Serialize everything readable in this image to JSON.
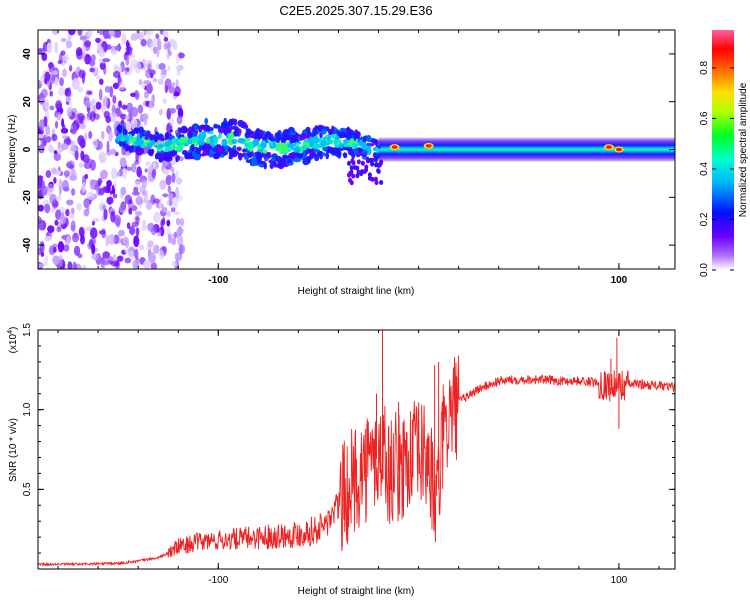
{
  "title": "C2E5.2025.307.15.29.E36",
  "chart_data": [
    {
      "type": "heatmap",
      "title": "C2E5.2025.307.15.29.E36",
      "xlabel": "Height of straight line (km)",
      "ylabel": "Frequency (Hz)",
      "xlim": [
        -190,
        128
      ],
      "ylim": [
        -50,
        50
      ],
      "x_ticks": [
        -100,
        100
      ],
      "y_ticks": [
        -40,
        -20,
        0,
        20,
        40
      ],
      "colorbar": {
        "label": "Normalized spectral amplitude",
        "range": [
          0,
          0.95
        ],
        "ticks": [
          "0.0",
          "0.2",
          "0.4",
          "0.6",
          "0.8"
        ]
      },
      "features": [
        {
          "name": "scatter-noise",
          "x_range": [
            -190,
            -128
          ],
          "freq_range": [
            -50,
            50
          ]
        },
        {
          "name": "wobbly-band",
          "x_range": [
            -150,
            -20
          ],
          "freq_center": 4,
          "freq_width": 8
        },
        {
          "name": "flat-band",
          "x_range": [
            -20,
            128
          ],
          "freq_center": 0,
          "freq_width": 5
        },
        {
          "name": "peak-1",
          "x": -12,
          "freq": 1,
          "amplitude": 0.9
        },
        {
          "name": "peak-2",
          "x": 5,
          "freq": 1.5,
          "amplitude": 0.95
        },
        {
          "name": "peak-3",
          "x": 95,
          "freq": 1,
          "amplitude": 0.85
        },
        {
          "name": "peak-4",
          "x": 100,
          "freq": 0,
          "amplitude": 0.95
        }
      ]
    },
    {
      "type": "line",
      "xlabel": "Height of straight line (km)",
      "ylabel": "SNR (10 * v/v)",
      "multiplier": "(x10",
      "multiplier_exp": "4",
      "multiplier_close": ")",
      "xlim": [
        -190,
        128
      ],
      "ylim": [
        0,
        1.5
      ],
      "x_ticks": [
        -100,
        100
      ],
      "y_ticks": [
        "0.5",
        "1.0",
        "1.5"
      ],
      "series": [
        {
          "name": "SNR",
          "color": "#ee2222",
          "x": [
            -190,
            -170,
            -150,
            -140,
            -130,
            -125,
            -120,
            -110,
            -100,
            -90,
            -80,
            -70,
            -60,
            -50,
            -45,
            -40,
            -35,
            -30,
            -25,
            -20,
            -17,
            -15,
            -12,
            -10,
            -5,
            0,
            5,
            8,
            10,
            12,
            15,
            20,
            30,
            40,
            50,
            60,
            70,
            80,
            90,
            95,
            100,
            105,
            110,
            120,
            128
          ],
          "y": [
            0.03,
            0.03,
            0.035,
            0.05,
            0.07,
            0.1,
            0.14,
            0.17,
            0.18,
            0.19,
            0.2,
            0.21,
            0.22,
            0.25,
            0.3,
            0.4,
            0.5,
            0.6,
            0.65,
            0.7,
            0.75,
            0.6,
            0.65,
            0.62,
            0.7,
            0.72,
            0.7,
            0.4,
            0.5,
            0.8,
            0.95,
            1.05,
            1.13,
            1.18,
            1.19,
            1.19,
            1.18,
            1.18,
            1.17,
            1.15,
            1.15,
            1.16,
            1.16,
            1.15,
            1.14
          ]
        }
      ],
      "spikes": [
        {
          "x": -18,
          "y": 1.5
        },
        {
          "x": -21,
          "y": 1.1
        },
        {
          "x": -10,
          "y": 1.05
        },
        {
          "x": 8,
          "y": 1.28
        },
        {
          "x": 10,
          "y": 1.3
        },
        {
          "x": 96,
          "y": 1.32
        },
        {
          "x": 99,
          "y": 1.45
        },
        {
          "x": 100,
          "y": 0.88
        }
      ]
    }
  ]
}
